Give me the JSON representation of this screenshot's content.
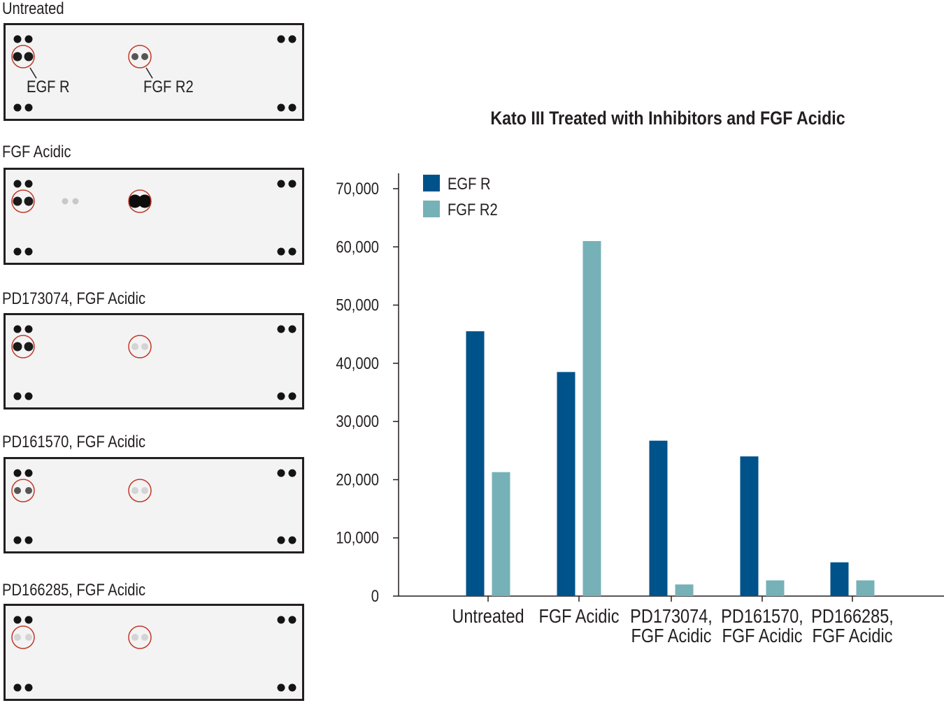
{
  "blot_panels": [
    {
      "label": "Untreated",
      "egfr_spot": "strong",
      "fgfr2_spot": "medium",
      "callouts": [
        "EGF R",
        "FGF R2"
      ]
    },
    {
      "label": "FGF Acidic",
      "egfr_spot": "strong",
      "fgfr2_spot": "very-strong"
    },
    {
      "label": "PD173074, FGF Acidic",
      "egfr_spot": "strong",
      "fgfr2_spot": "faint"
    },
    {
      "label": "PD161570, FGF Acidic",
      "egfr_spot": "medium",
      "fgfr2_spot": "faint"
    },
    {
      "label": "PD166285, FGF Acidic",
      "egfr_spot": "faint",
      "fgfr2_spot": "faint"
    }
  ],
  "colors": {
    "egfr": "#00528a",
    "fgfr2": "#76b1b8",
    "circle": "#c0392b",
    "axis": "#231f20"
  },
  "chart_data": {
    "type": "bar",
    "title": "Kato III Treated with Inhibitors and FGF Acidic",
    "categories": [
      [
        "Untreated"
      ],
      [
        "FGF Acidic"
      ],
      [
        "PD173074,",
        "FGF Acidic"
      ],
      [
        "PD161570,",
        "FGF Acidic"
      ],
      [
        "PD166285,",
        "FGF Acidic"
      ]
    ],
    "series": [
      {
        "name": "EGF R",
        "color": "#00528a",
        "values": [
          45500,
          38500,
          26700,
          24000,
          5800
        ]
      },
      {
        "name": "FGF R2",
        "color": "#76b1b8",
        "values": [
          21300,
          61000,
          2000,
          2700,
          2700
        ]
      }
    ],
    "ylim": [
      0,
      70000
    ],
    "yticks": [
      0,
      10000,
      20000,
      30000,
      40000,
      50000,
      60000,
      70000
    ],
    "ytick_labels": [
      "0",
      "10,000",
      "20,000",
      "30,000",
      "40,000",
      "50,000",
      "60,000",
      "70,000"
    ],
    "xlabel": "",
    "ylabel": "",
    "legend": "top-left"
  }
}
